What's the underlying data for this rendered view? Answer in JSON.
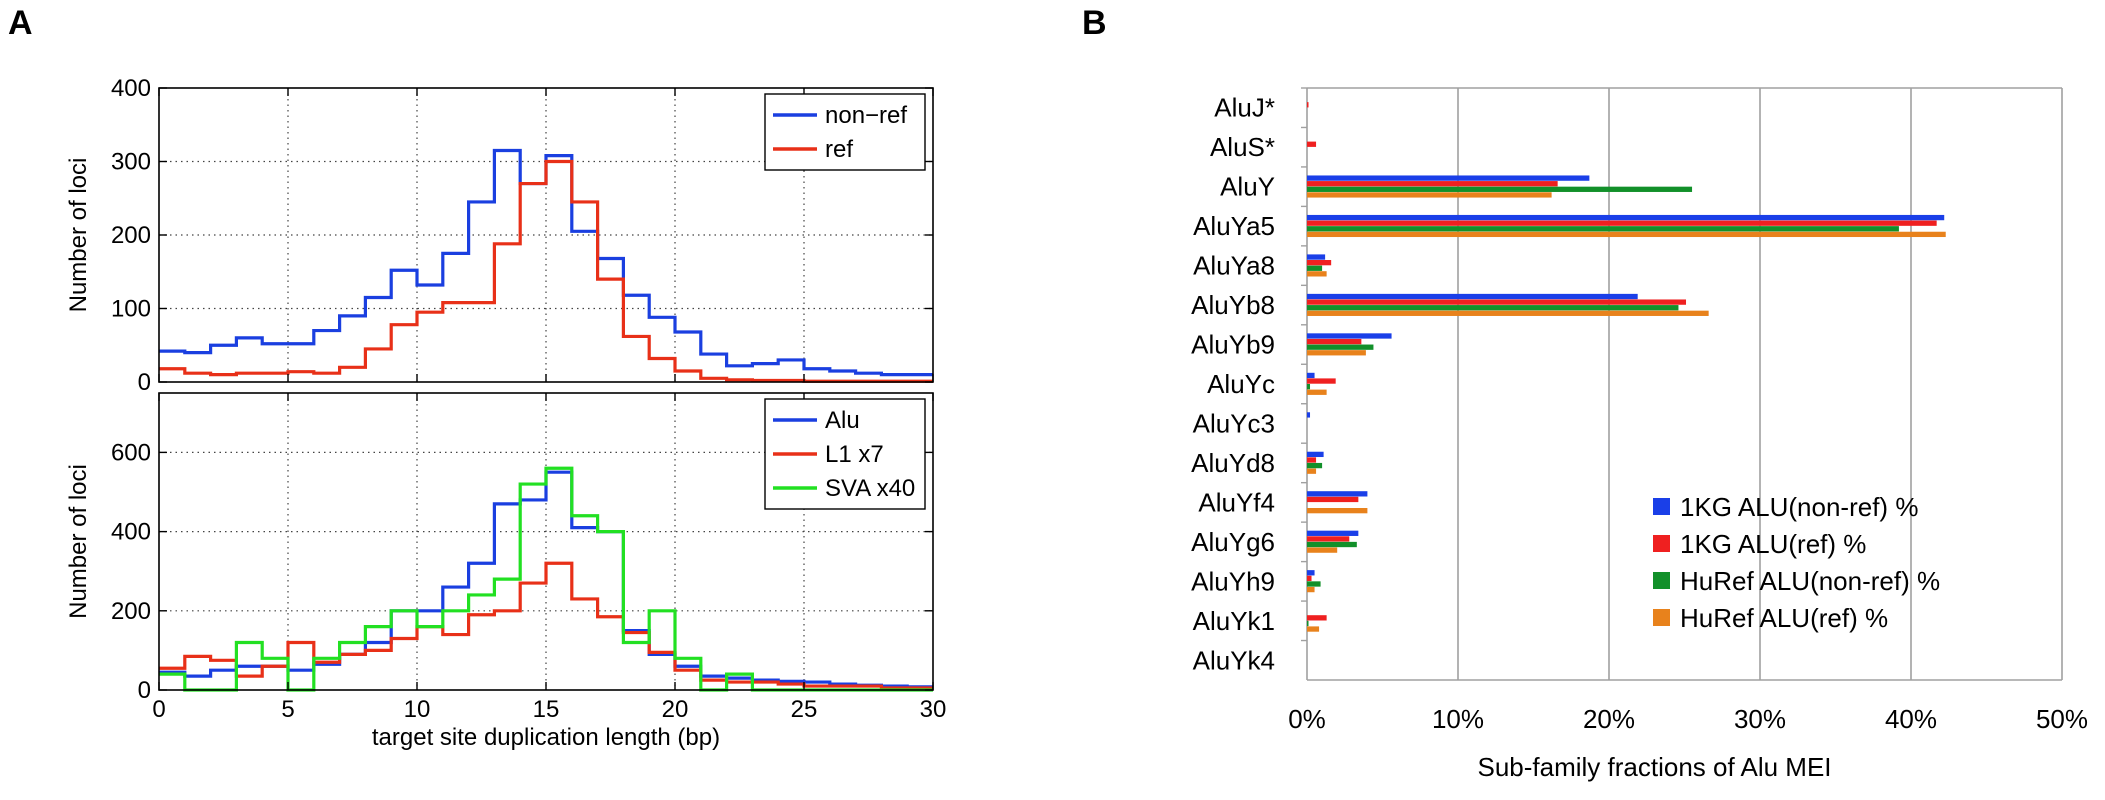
{
  "panels": {
    "a_label": "A",
    "b_label": "B"
  },
  "chart_data": [
    {
      "type": "line",
      "step": true,
      "panel": "A-top",
      "xlabel": "",
      "ylabel": "Number of loci",
      "xlim": [
        0,
        30
      ],
      "ylim": [
        0,
        400
      ],
      "yticks": [
        0,
        100,
        200,
        300,
        400
      ],
      "xticks": [
        0,
        5,
        10,
        15,
        20,
        25,
        30
      ],
      "grid": true,
      "legend_position": "top-right",
      "bin_edges": [
        0,
        1,
        2,
        3,
        4,
        5,
        6,
        7,
        8,
        9,
        10,
        11,
        12,
        13,
        14,
        15,
        16,
        17,
        18,
        19,
        20,
        21,
        22,
        23,
        24,
        25,
        26,
        27,
        28,
        29,
        30
      ],
      "series": [
        {
          "name": "non−ref",
          "color": "#1a3fe0",
          "values": [
            42,
            40,
            50,
            60,
            52,
            52,
            70,
            90,
            115,
            152,
            132,
            175,
            245,
            315,
            270,
            308,
            205,
            168,
            118,
            88,
            68,
            38,
            22,
            25,
            30,
            18,
            15,
            12,
            10,
            10
          ]
        },
        {
          "name": "ref",
          "color": "#e83018",
          "values": [
            18,
            12,
            10,
            12,
            12,
            14,
            12,
            20,
            45,
            78,
            95,
            108,
            108,
            188,
            270,
            300,
            245,
            140,
            62,
            32,
            15,
            5,
            3,
            2,
            2,
            1,
            1,
            1,
            1,
            1
          ]
        }
      ]
    },
    {
      "type": "line",
      "step": true,
      "panel": "A-bottom",
      "xlabel": "target site duplication length (bp)",
      "ylabel": "Number of loci",
      "xlim": [
        0,
        30
      ],
      "ylim": [
        0,
        750
      ],
      "yticks": [
        0,
        200,
        400,
        600
      ],
      "xticks": [
        0,
        5,
        10,
        15,
        20,
        25,
        30
      ],
      "grid": true,
      "legend_position": "top-right",
      "bin_edges": [
        0,
        1,
        2,
        3,
        4,
        5,
        6,
        7,
        8,
        9,
        10,
        11,
        12,
        13,
        14,
        15,
        16,
        17,
        18,
        19,
        20,
        21,
        22,
        23,
        24,
        25,
        26,
        27,
        28,
        29,
        30
      ],
      "series": [
        {
          "name": "Alu",
          "color": "#1a3fe0",
          "values": [
            45,
            35,
            50,
            60,
            60,
            50,
            65,
            90,
            120,
            200,
            200,
            260,
            320,
            470,
            480,
            550,
            410,
            400,
            150,
            90,
            60,
            35,
            30,
            25,
            22,
            20,
            15,
            12,
            10,
            8
          ]
        },
        {
          "name": "L1 x7",
          "color": "#e83018",
          "values": [
            55,
            85,
            75,
            35,
            60,
            120,
            70,
            90,
            100,
            130,
            160,
            140,
            190,
            200,
            270,
            320,
            230,
            185,
            145,
            95,
            50,
            25,
            20,
            20,
            15,
            10,
            10,
            10,
            5,
            5
          ]
        },
        {
          "name": "SVA x40",
          "color": "#22e022",
          "values": [
            40,
            0,
            0,
            120,
            80,
            0,
            80,
            120,
            160,
            200,
            160,
            200,
            240,
            280,
            520,
            560,
            440,
            400,
            120,
            200,
            80,
            0,
            40,
            0,
            0,
            0,
            0,
            0,
            0,
            0
          ]
        }
      ]
    },
    {
      "type": "bar",
      "orientation": "horizontal",
      "panel": "B",
      "xlabel": "Sub-family fractions of Alu MEI",
      "ylabel": "",
      "xlim": [
        0,
        50
      ],
      "xticks": [
        "0%",
        "10%",
        "20%",
        "30%",
        "40%",
        "50%"
      ],
      "grid": true,
      "legend_position": "bottom-right",
      "categories": [
        "AluJ*",
        "AluS*",
        "AluY",
        "AluYa5",
        "AluYa8",
        "AluYb8",
        "AluYb9",
        "AluYc",
        "AluYc3",
        "AluYd8",
        "AluYf4",
        "AluYg6",
        "AluYh9",
        "AluYk1",
        "AluYk4"
      ],
      "series": [
        {
          "name": "1KG ALU(non-ref) %",
          "color": "#1a3fe8",
          "values": [
            0,
            0,
            18.7,
            42.2,
            1.2,
            21.9,
            5.6,
            0.5,
            0.2,
            1.1,
            4.0,
            3.4,
            0.5,
            0,
            0
          ]
        },
        {
          "name": "1KG ALU(ref)  %",
          "color": "#ef2020",
          "values": [
            0.1,
            0.6,
            16.6,
            41.7,
            1.6,
            25.1,
            3.6,
            1.9,
            0,
            0.6,
            3.4,
            2.8,
            0.3,
            1.3,
            0
          ]
        },
        {
          "name": "HuRef ALU(non-ref) %",
          "color": "#12902a",
          "values": [
            0,
            0,
            25.5,
            39.2,
            1.0,
            24.6,
            4.4,
            0.2,
            0,
            1.0,
            0,
            3.3,
            0.9,
            0.1,
            0
          ]
        },
        {
          "name": "HuRef ALU(ref) %",
          "color": "#e8821c",
          "values": [
            0,
            0,
            16.2,
            42.3,
            1.3,
            26.6,
            3.9,
            1.3,
            0,
            0.6,
            4.0,
            2.0,
            0.5,
            0.8,
            0
          ]
        }
      ]
    }
  ]
}
